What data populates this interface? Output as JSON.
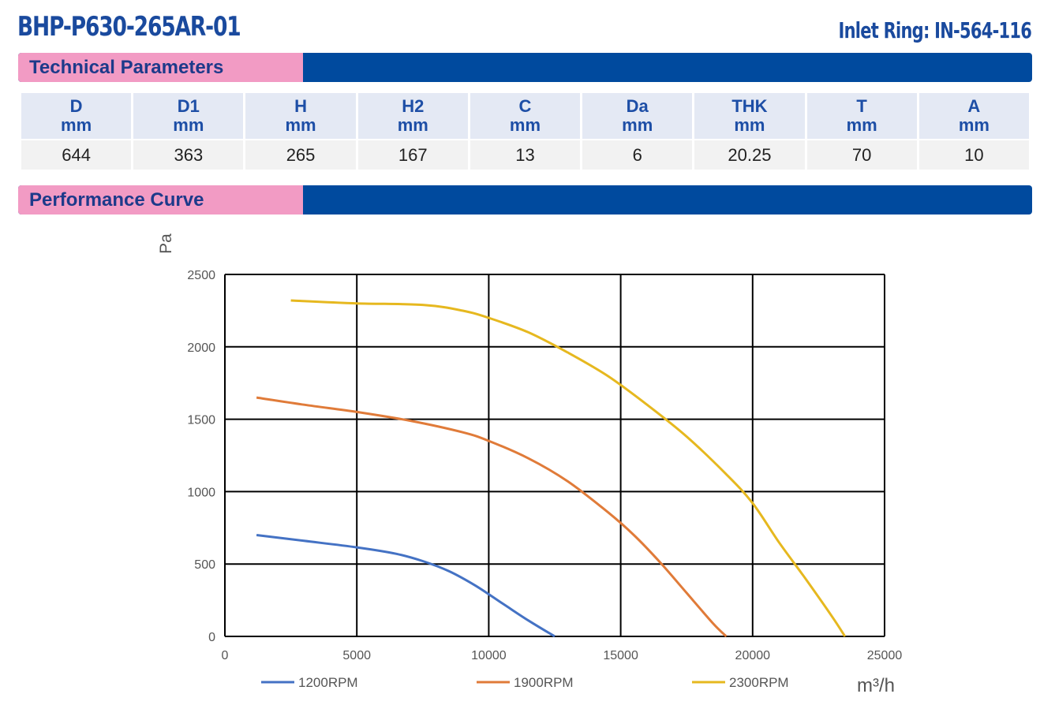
{
  "header": {
    "model": "BHP-P630-265AR-01",
    "inlet_ring": "Inlet Ring: IN-564-116"
  },
  "sections": {
    "technical": "Technical Parameters",
    "performance": "Performance Curve"
  },
  "parameters": {
    "columns": [
      {
        "name": "D",
        "unit": "mm",
        "value": "644"
      },
      {
        "name": "D1",
        "unit": "mm",
        "value": "363"
      },
      {
        "name": "H",
        "unit": "mm",
        "value": "265"
      },
      {
        "name": "H2",
        "unit": "mm",
        "value": "167"
      },
      {
        "name": "C",
        "unit": "mm",
        "value": "13"
      },
      {
        "name": "Da",
        "unit": "mm",
        "value": "6"
      },
      {
        "name": "THK",
        "unit": "mm",
        "value": "20.25"
      },
      {
        "name": "T",
        "unit": "mm",
        "value": "70"
      },
      {
        "name": "A",
        "unit": "mm",
        "value": "10"
      }
    ]
  },
  "colors": {
    "brand_blue": "#004a9e",
    "tab_pink": "#f29bc4",
    "series_1200": "#4472c4",
    "series_1900": "#e07b39",
    "series_2300": "#e6b81f"
  },
  "chart_data": {
    "type": "line",
    "xlabel": "m³/h",
    "ylabel": "Pa",
    "xlim": [
      0,
      25000
    ],
    "ylim": [
      0,
      2500
    ],
    "x_ticks": [
      0,
      5000,
      10000,
      15000,
      20000,
      25000
    ],
    "y_ticks": [
      0,
      500,
      1000,
      1500,
      2000,
      2500
    ],
    "grid": true,
    "legend_position": "bottom",
    "series": [
      {
        "name": "1200RPM",
        "color": "#4472c4",
        "x": [
          1200,
          3000,
          5000,
          6500,
          7500,
          8500,
          9500,
          10500,
          11500,
          12500
        ],
        "y": [
          700,
          660,
          615,
          570,
          520,
          450,
          350,
          230,
          110,
          0
        ]
      },
      {
        "name": "1900RPM",
        "color": "#e07b39",
        "x": [
          1200,
          3000,
          5000,
          7000,
          9000,
          10000,
          11500,
          13000,
          14500,
          15500,
          16500,
          17500,
          18500,
          19000
        ],
        "y": [
          1650,
          1600,
          1550,
          1490,
          1410,
          1350,
          1230,
          1070,
          860,
          700,
          510,
          300,
          90,
          0
        ]
      },
      {
        "name": "2300RPM",
        "color": "#e6b81f",
        "x": [
          2500,
          5000,
          7500,
          9000,
          10000,
          11500,
          13000,
          14500,
          16000,
          17500,
          19000,
          20000,
          21000,
          22000,
          23000,
          23500
        ],
        "y": [
          2320,
          2300,
          2290,
          2250,
          2200,
          2100,
          1960,
          1800,
          1600,
          1380,
          1120,
          920,
          650,
          400,
          140,
          0
        ]
      }
    ]
  }
}
